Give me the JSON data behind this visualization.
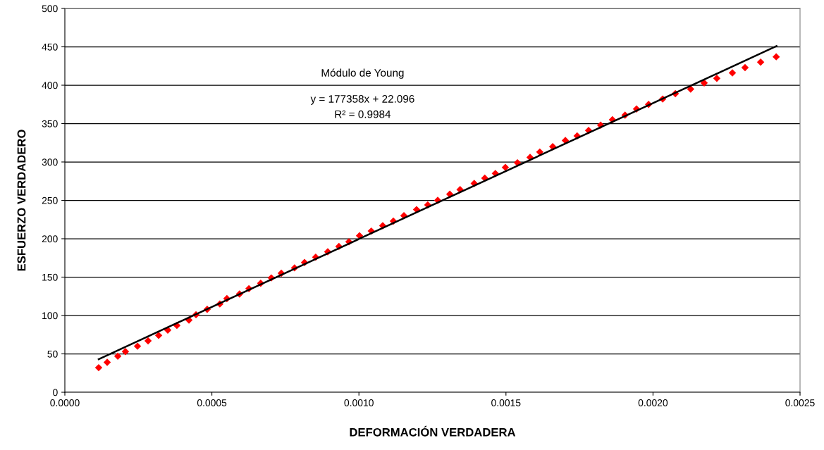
{
  "chart_data": {
    "type": "scatter",
    "xlabel": "DEFORMACIÓN VERDADERA",
    "ylabel": "ESFUERZO VERDADERO",
    "annotations": [
      "Módulo de Young",
      "y = 177358x + 22.096",
      "R² = 0.9984"
    ],
    "xlim": [
      0,
      0.0025
    ],
    "ylim": [
      0,
      500
    ],
    "xticks": [
      {
        "value": 0,
        "label": "0.0000"
      },
      {
        "value": 0.0005,
        "label": "0.0005"
      },
      {
        "value": 0.001,
        "label": "0.0010"
      },
      {
        "value": 0.0015,
        "label": "0.0015"
      },
      {
        "value": 0.002,
        "label": "0.0020"
      },
      {
        "value": 0.0025,
        "label": "0.0025"
      }
    ],
    "yticks": [
      0,
      50,
      100,
      150,
      200,
      250,
      300,
      350,
      400,
      450,
      500
    ],
    "grid": "y",
    "legend": false,
    "series": [
      {
        "color": "#ff0000",
        "marker": "diamond",
        "x": [
          0.000115,
          0.000144,
          0.00018,
          0.000206,
          0.000247,
          0.000283,
          0.000319,
          0.00035,
          0.000381,
          0.000422,
          0.000446,
          0.000484,
          0.000527,
          0.000551,
          0.000594,
          0.000626,
          0.000666,
          0.000702,
          0.000736,
          0.000781,
          0.000815,
          0.000853,
          0.000894,
          0.000932,
          0.000966,
          0.001002,
          0.001042,
          0.001081,
          0.001117,
          0.001153,
          0.001196,
          0.001234,
          0.001268,
          0.001309,
          0.001344,
          0.001392,
          0.001428,
          0.001464,
          0.001498,
          0.001539,
          0.001582,
          0.001615,
          0.001659,
          0.001702,
          0.001742,
          0.001781,
          0.001822,
          0.001862,
          0.001905,
          0.001944,
          0.001985,
          0.002033,
          0.002076,
          0.002128,
          0.002174,
          0.002217,
          0.00227,
          0.002313,
          0.002366,
          0.002419
        ],
        "values": [
          32,
          39,
          47,
          53,
          60,
          67,
          74,
          81,
          87,
          94,
          101,
          108,
          115,
          122,
          128,
          135,
          142,
          149,
          155,
          162,
          169,
          176,
          183,
          190,
          196,
          204,
          210,
          217,
          223,
          230,
          238,
          244,
          250,
          258,
          264,
          272,
          279,
          285,
          293,
          299,
          306,
          313,
          320,
          328,
          334,
          341,
          348,
          355,
          361,
          369,
          375,
          382,
          389,
          395,
          403,
          409,
          416,
          423,
          430,
          437
        ]
      },
      {
        "type": "line",
        "color": "#000000",
        "marker": "none",
        "line_style": "solid",
        "x": [
          0.000115,
          0.00242
        ],
        "values": [
          43,
          451
        ]
      }
    ]
  }
}
